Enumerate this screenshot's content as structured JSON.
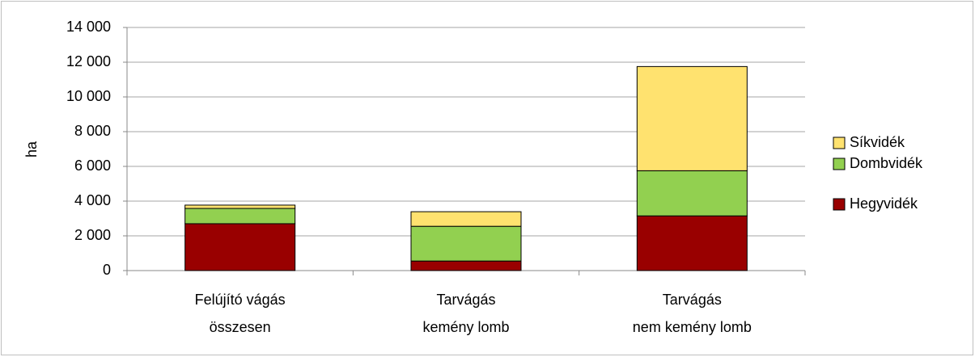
{
  "chart_data": {
    "type": "bar",
    "stacked": true,
    "categories": [
      [
        "Felújító vágás",
        "összesen"
      ],
      [
        "Tarvágás",
        "kemény lomb"
      ],
      [
        "Tarvágás",
        "nem kemény lomb"
      ]
    ],
    "series": [
      {
        "name": "Hegyvidék",
        "color": "#990000",
        "values": [
          2700,
          550,
          3150
        ]
      },
      {
        "name": "Dombvidék",
        "color": "#92d050",
        "values": [
          880,
          2000,
          2600
        ]
      },
      {
        "name": "Síkvidék",
        "color": "#ffe26f",
        "values": [
          190,
          840,
          6000
        ]
      }
    ],
    "y_label": "ha",
    "ylim": [
      0,
      14000
    ],
    "yticks": [
      0,
      {
        "value": 2000,
        "label": "2 000"
      },
      {
        "value": 4000,
        "label": "4 000"
      },
      {
        "value": 6000,
        "label": "6 000"
      },
      {
        "value": 8000,
        "label": "8 000"
      },
      {
        "value": 10000,
        "label": "10 000"
      },
      {
        "value": 12000,
        "label": "12 000"
      },
      {
        "value": 14000,
        "label": "14 000"
      }
    ],
    "grid": true,
    "legend": "right"
  }
}
